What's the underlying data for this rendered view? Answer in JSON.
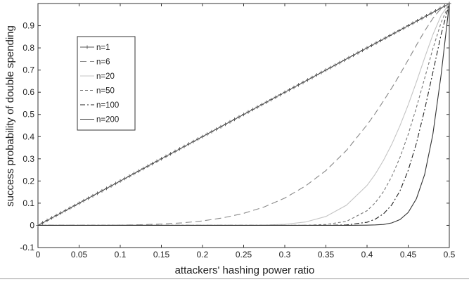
{
  "chart_data": {
    "type": "line",
    "title": "",
    "xlabel": "attackers' hashing power ratio",
    "ylabel": "success probability of double spending",
    "xlim": [
      0,
      0.5
    ],
    "ylim": [
      -0.1,
      1.0
    ],
    "xticks": [
      "0",
      "0.05",
      "0.1",
      "0.15",
      "0.2",
      "0.25",
      "0.3",
      "0.35",
      "0.4",
      "0.45",
      "0.5"
    ],
    "yticks": [
      "-0.1",
      "0",
      "0.1",
      "0.2",
      "0.3",
      "0.4",
      "0.5",
      "0.6",
      "0.7",
      "0.8",
      "0.9"
    ],
    "x": [
      0,
      0.025,
      0.05,
      0.075,
      0.1,
      0.125,
      0.15,
      0.175,
      0.2,
      0.225,
      0.25,
      0.275,
      0.3,
      0.325,
      0.35,
      0.375,
      0.4,
      0.41,
      0.42,
      0.43,
      0.44,
      0.45,
      0.46,
      0.47,
      0.48,
      0.49,
      0.5
    ],
    "series": [
      {
        "name": "n=1",
        "color": "#555555",
        "marker": "plus",
        "values": [
          0,
          0.05,
          0.1,
          0.15,
          0.2,
          0.25,
          0.3,
          0.35,
          0.4,
          0.45,
          0.5,
          0.55,
          0.6,
          0.65,
          0.7,
          0.75,
          0.8,
          0.82,
          0.84,
          0.86,
          0.88,
          0.9,
          0.92,
          0.94,
          0.96,
          0.98,
          1.0
        ]
      },
      {
        "name": "n=6",
        "color": "#888888",
        "dash": "long",
        "values": [
          0,
          0,
          0,
          0,
          0.001,
          0.003,
          0.006,
          0.011,
          0.02,
          0.034,
          0.054,
          0.083,
          0.123,
          0.177,
          0.247,
          0.338,
          0.453,
          0.505,
          0.561,
          0.619,
          0.681,
          0.746,
          0.812,
          0.876,
          0.933,
          0.978,
          1.0
        ]
      },
      {
        "name": "n=20",
        "color": "#c4c4c4",
        "dash": "solid",
        "values": [
          0,
          0,
          0,
          0,
          0,
          0,
          0,
          0,
          0,
          0,
          0,
          0.001,
          0.005,
          0.015,
          0.04,
          0.091,
          0.18,
          0.231,
          0.293,
          0.365,
          0.449,
          0.543,
          0.646,
          0.755,
          0.859,
          0.946,
          1.0
        ]
      },
      {
        "name": "n=50",
        "color": "#777777",
        "dash": "short",
        "values": [
          0,
          0,
          0,
          0,
          0,
          0,
          0,
          0,
          0,
          0,
          0,
          0,
          0,
          0,
          0.004,
          0.018,
          0.066,
          0.102,
          0.152,
          0.22,
          0.306,
          0.41,
          0.531,
          0.663,
          0.796,
          0.914,
          1.0
        ]
      },
      {
        "name": "n=100",
        "color": "#222222",
        "dash": "dashdot",
        "values": [
          0,
          0,
          0,
          0,
          0,
          0,
          0,
          0,
          0,
          0,
          0,
          0,
          0,
          0,
          0,
          0.002,
          0.014,
          0.028,
          0.052,
          0.092,
          0.155,
          0.248,
          0.37,
          0.521,
          0.689,
          0.86,
          1.0
        ]
      },
      {
        "name": "n=200",
        "color": "#333333",
        "dash": "solid",
        "values": [
          0,
          0,
          0,
          0,
          0,
          0,
          0,
          0,
          0,
          0,
          0,
          0,
          0,
          0,
          0,
          0,
          0.001,
          0.002,
          0.004,
          0.011,
          0.026,
          0.058,
          0.12,
          0.229,
          0.41,
          0.678,
          1.0
        ]
      }
    ],
    "grid": false,
    "legend": "top-left"
  }
}
